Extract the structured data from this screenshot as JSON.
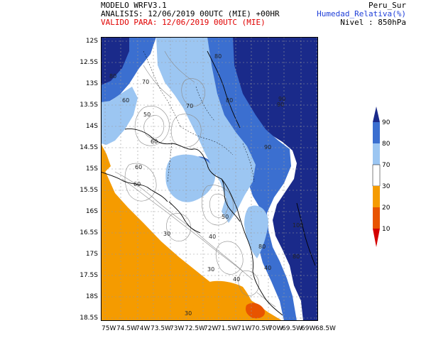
{
  "header": {
    "model": "MODELO WRFV3.1",
    "analysis": "ANALISIS: 12/06/2019 00UTC (MIE) +00HR",
    "valid": "VALIDO PARA: 12/06/2019 00UTC (MIE)",
    "domain": "Peru_Sur",
    "variable": "Humedad_Relativa(%)",
    "level": "Nivel : 850hPa"
  },
  "axes": {
    "y_ticks": [
      "12S",
      "12.5S",
      "13S",
      "13.5S",
      "14S",
      "14.5S",
      "15S",
      "15.5S",
      "16S",
      "16.5S",
      "17S",
      "17.5S",
      "18S",
      "18.5S"
    ],
    "x_ticks": [
      "75W",
      "74.5W",
      "74W",
      "73.5W",
      "73W",
      "72.5W",
      "72W",
      "71.5W",
      "71W",
      "70.5W",
      "70W",
      "69.5W",
      "69W",
      "68.5W"
    ]
  },
  "legend": {
    "levels": [
      "90",
      "80",
      "70",
      "30",
      "20",
      "10"
    ],
    "colors": [
      "#1a2a8a",
      "#3b6fd0",
      "#9cc6f2",
      "#ffffff",
      "#f59b00",
      "#e85400",
      "#d40000"
    ]
  },
  "contour_labels": [
    "80",
    "80",
    "70",
    "60",
    "50",
    "60",
    "70",
    "80",
    "90",
    "90",
    "60",
    "50",
    "40",
    "30",
    "30",
    "80",
    "80",
    "90",
    "100",
    "30",
    "40",
    "40",
    "60"
  ],
  "map_colors": {
    "ocean": "#f59b00",
    "land": "#ffffff",
    "dark_blue": "#1a2a8a",
    "mid_blue": "#3b6fd0",
    "light_blue": "#9cc6f2",
    "deep_orange": "#e85400"
  }
}
